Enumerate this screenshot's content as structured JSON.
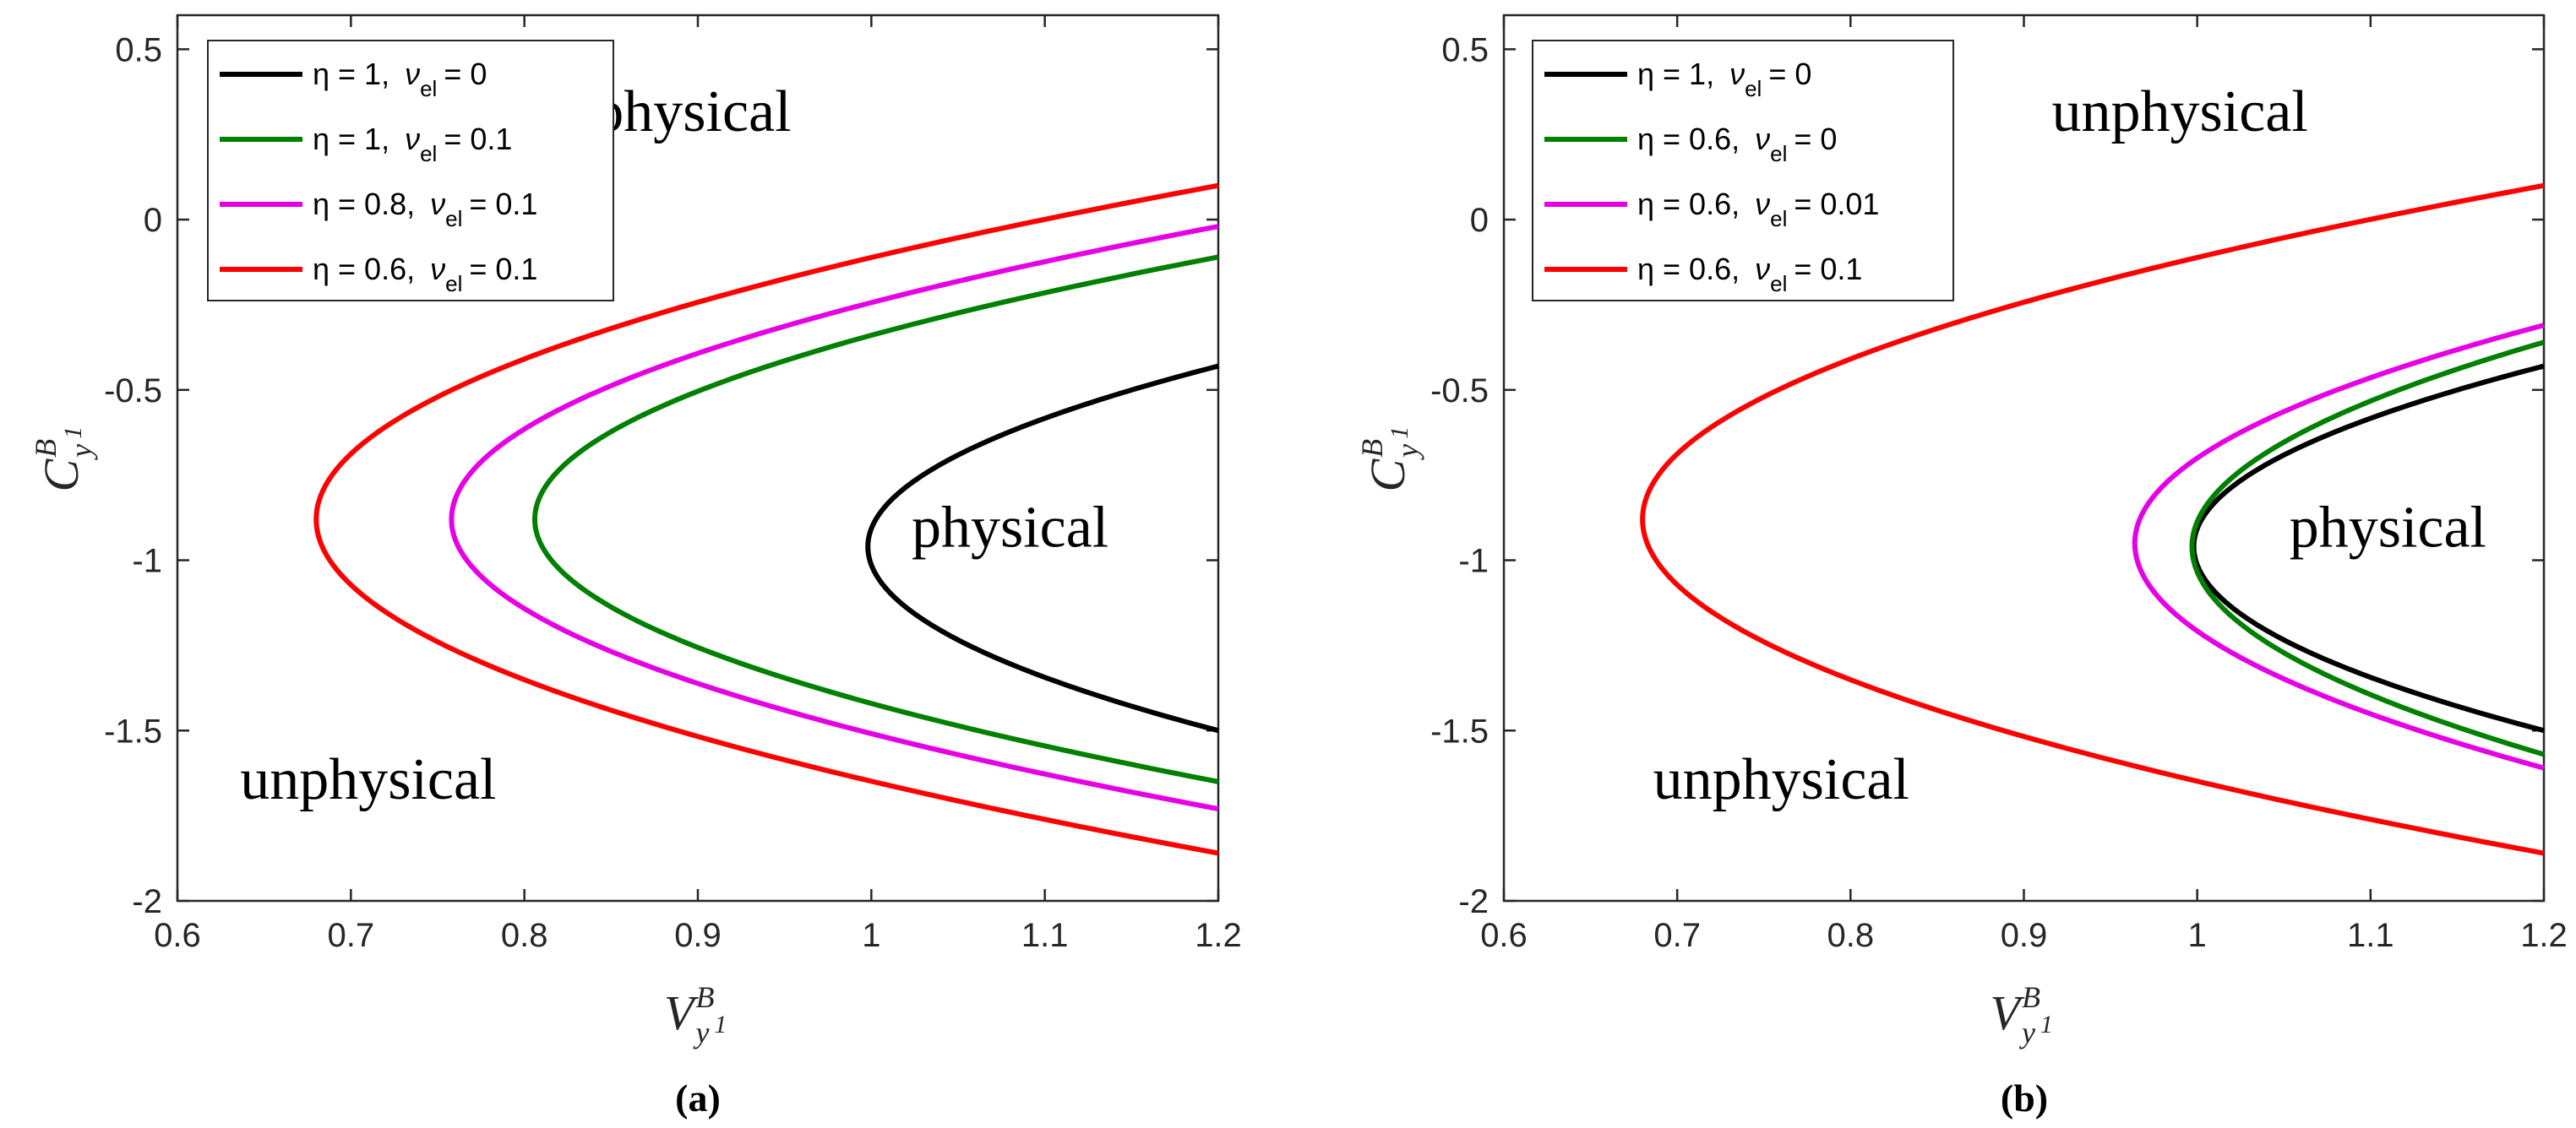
{
  "chart_data": [
    {
      "type": "line",
      "panel_label": "(a)",
      "xlabel": {
        "main": "V",
        "sup": "B",
        "sub": "y",
        "subsub": "1"
      },
      "ylabel": {
        "main": "C",
        "sup": "B",
        "sub": "y",
        "subsub": "1"
      },
      "xlim": [
        0.6,
        1.2
      ],
      "ylim": [
        -2,
        0.6
      ],
      "xticks": [
        "0.6",
        "0.7",
        "0.8",
        "0.9",
        "1",
        "1.1",
        "1.2"
      ],
      "yticks": [
        "-2",
        "-1.5",
        "-1",
        "-0.5",
        "0",
        "0.5"
      ],
      "grid": false,
      "legend_position": "top-left",
      "annotations": [
        {
          "text": "unphysical",
          "x": 0.88,
          "y": 0.26
        },
        {
          "text": "physical",
          "x": 1.08,
          "y": -0.96
        },
        {
          "text": "unphysical",
          "x": 0.71,
          "y": -1.7
        }
      ],
      "series": [
        {
          "eta": "η = 1,",
          "nu_label": "ν",
          "nu_sub": "el",
          "nu_value": "= 0",
          "color": "#000000",
          "vertex": [
            0.998,
            -0.96
          ],
          "upper_end": [
            1.2,
            -0.43
          ],
          "lower_end": [
            1.2,
            -1.5
          ]
        },
        {
          "eta": "η = 1,",
          "nu_label": "ν",
          "nu_sub": "el",
          "nu_value": "= 0.1",
          "color": "#008000",
          "vertex": [
            0.806,
            -0.88
          ],
          "upper_end": [
            1.2,
            -0.11
          ],
          "lower_end": [
            1.2,
            -1.65
          ]
        },
        {
          "eta": "η = 0.8,",
          "nu_label": "ν",
          "nu_sub": "el",
          "nu_value": "= 0.1",
          "color": "#e600e6",
          "vertex": [
            0.758,
            -0.88
          ],
          "upper_end": [
            1.2,
            -0.02
          ],
          "lower_end": [
            1.2,
            -1.73
          ]
        },
        {
          "eta": "η = 0.6,",
          "nu_label": "ν",
          "nu_sub": "el",
          "nu_value": "= 0.1",
          "color": "#ff0000",
          "vertex": [
            0.68,
            -0.88
          ],
          "upper_end": [
            1.2,
            0.1
          ],
          "lower_end": [
            1.2,
            -1.86
          ]
        }
      ]
    },
    {
      "type": "line",
      "panel_label": "(b)",
      "xlabel": {
        "main": "V",
        "sup": "B",
        "sub": "y",
        "subsub": "1"
      },
      "ylabel": {
        "main": "C",
        "sup": "B",
        "sub": "y",
        "subsub": "1"
      },
      "xlim": [
        0.6,
        1.2
      ],
      "ylim": [
        -2,
        0.6
      ],
      "xticks": [
        "0.6",
        "0.7",
        "0.8",
        "0.9",
        "1",
        "1.1",
        "1.2"
      ],
      "yticks": [
        "-2",
        "-1.5",
        "-1",
        "-0.5",
        "0",
        "0.5"
      ],
      "grid": false,
      "legend_position": "top-left",
      "annotations": [
        {
          "text": "unphysical",
          "x": 0.99,
          "y": 0.26
        },
        {
          "text": "physical",
          "x": 1.11,
          "y": -0.96
        },
        {
          "text": "unphysical",
          "x": 0.76,
          "y": -1.7
        }
      ],
      "series": [
        {
          "eta": "η = 1,",
          "nu_label": "ν",
          "nu_sub": "el",
          "nu_value": "= 0",
          "color": "#000000",
          "vertex": [
            0.998,
            -0.96
          ],
          "upper_end": [
            1.2,
            -0.43
          ],
          "lower_end": [
            1.2,
            -1.5
          ]
        },
        {
          "eta": "η = 0.6,",
          "nu_label": "ν",
          "nu_sub": "el",
          "nu_value": "= 0",
          "color": "#008000",
          "vertex": [
            0.997,
            -0.96
          ],
          "upper_end": [
            1.2,
            -0.36
          ],
          "lower_end": [
            1.2,
            -1.57
          ]
        },
        {
          "eta": "η = 0.6,",
          "nu_label": "ν",
          "nu_sub": "el",
          "nu_value": "= 0.01",
          "color": "#e600e6",
          "vertex": [
            0.964,
            -0.95
          ],
          "upper_end": [
            1.2,
            -0.31
          ],
          "lower_end": [
            1.2,
            -1.61
          ]
        },
        {
          "eta": "η = 0.6,",
          "nu_label": "ν",
          "nu_sub": "el",
          "nu_value": "= 0.1",
          "color": "#ff0000",
          "vertex": [
            0.68,
            -0.88
          ],
          "upper_end": [
            1.2,
            0.1
          ],
          "lower_end": [
            1.2,
            -1.86
          ]
        }
      ]
    }
  ]
}
